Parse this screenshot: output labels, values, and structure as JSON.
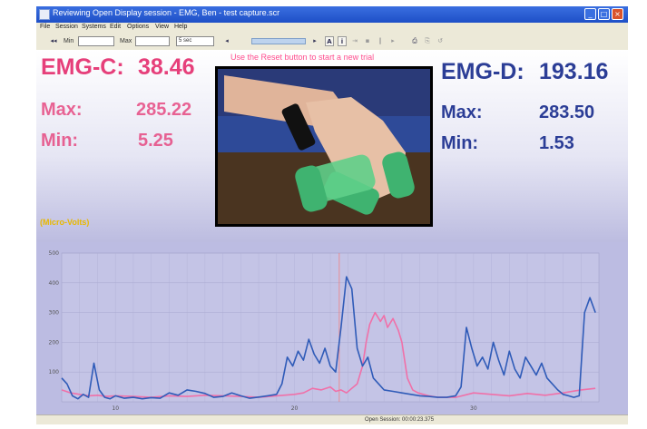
{
  "window": {
    "title": "Reviewing Open Display session - EMG, Ben - test capture.scr"
  },
  "menu": [
    "File",
    "Session",
    "Systems",
    "Edit",
    "Options",
    "View",
    "Help"
  ],
  "toolbar": {
    "min_label": "Min",
    "max_label": "Max",
    "time_select": "5 sec"
  },
  "banner": {
    "message": "Use the Reset button to start a new trial"
  },
  "emg_c": {
    "label": "EMG-C:",
    "value": "38.46",
    "max_label": "Max:",
    "max_value": "285.22",
    "min_label": "Min:",
    "min_value": "5.25",
    "color": "#e63f7a"
  },
  "emg_d": {
    "label": "EMG-D:",
    "value": "193.16",
    "max_label": "Max:",
    "max_value": "283.50",
    "min_label": "Min:",
    "min_value": "1.53",
    "color": "#2b3d96"
  },
  "units_label": "(Micro-Volts)",
  "status": {
    "text": "Open Session: 00:00:23.375"
  },
  "chart_data": {
    "type": "line",
    "ylim": [
      0,
      500
    ],
    "yticks": [
      "100",
      "200",
      "300",
      "400",
      "500"
    ],
    "xticks": [
      {
        "x": 10,
        "label": "10"
      },
      {
        "x": 20,
        "label": "20"
      },
      {
        "x": 30,
        "label": "30"
      }
    ],
    "xlim": [
      7,
      37
    ],
    "cursor_x": 22.5,
    "grid": true,
    "series": [
      {
        "color": "#2f5bb8",
        "x": [
          7,
          7.3,
          7.6,
          7.9,
          8.2,
          8.5,
          8.8,
          9.1,
          9.4,
          9.7,
          10,
          10.5,
          11,
          11.5,
          12,
          12.5,
          13,
          13.5,
          14,
          14.5,
          15,
          15.5,
          16,
          16.5,
          17,
          17.5,
          18,
          18.5,
          19,
          19.3,
          19.6,
          19.9,
          20.2,
          20.5,
          20.8,
          21.1,
          21.4,
          21.7,
          22,
          22.3,
          22.6,
          22.9,
          23.2,
          23.5,
          23.8,
          24.1,
          24.4,
          24.7,
          25,
          25.5,
          26,
          26.5,
          27,
          27.5,
          28,
          28.5,
          29,
          29.3,
          29.6,
          29.9,
          30.2,
          30.5,
          30.8,
          31.1,
          31.4,
          31.7,
          32,
          32.3,
          32.6,
          32.9,
          33.2,
          33.5,
          33.8,
          34.1,
          34.4,
          34.7,
          35,
          35.3,
          35.6,
          35.9,
          36.2,
          36.5,
          36.8
        ],
        "y": [
          80,
          60,
          20,
          10,
          25,
          15,
          130,
          40,
          15,
          10,
          20,
          12,
          15,
          10,
          14,
          12,
          30,
          22,
          40,
          35,
          28,
          15,
          18,
          30,
          20,
          12,
          16,
          20,
          25,
          60,
          150,
          120,
          170,
          140,
          210,
          160,
          130,
          180,
          120,
          100,
          250,
          420,
          380,
          180,
          120,
          150,
          80,
          60,
          40,
          35,
          30,
          25,
          20,
          18,
          15,
          15,
          20,
          50,
          250,
          180,
          120,
          150,
          110,
          200,
          140,
          90,
          170,
          110,
          80,
          150,
          120,
          90,
          130,
          80,
          60,
          40,
          25,
          20,
          15,
          20,
          300,
          350,
          300
        ]
      },
      {
        "color": "#f070a8",
        "x": [
          7,
          7.5,
          8,
          8.5,
          9,
          9.5,
          10,
          11,
          12,
          13,
          14,
          15,
          16,
          17,
          18,
          19,
          20,
          20.5,
          21,
          21.5,
          22,
          22.3,
          22.6,
          22.9,
          23.2,
          23.5,
          23.8,
          24,
          24.2,
          24.5,
          24.8,
          25,
          25.2,
          25.5,
          25.8,
          26,
          26.3,
          26.6,
          26.9,
          27.2,
          27.5,
          28,
          29,
          30,
          31,
          32,
          33,
          34,
          35,
          36,
          36.8
        ],
        "y": [
          40,
          30,
          25,
          20,
          22,
          18,
          20,
          18,
          15,
          20,
          18,
          22,
          20,
          18,
          15,
          20,
          25,
          30,
          45,
          40,
          50,
          35,
          40,
          30,
          45,
          60,
          120,
          200,
          260,
          300,
          270,
          290,
          250,
          280,
          240,
          200,
          80,
          40,
          30,
          25,
          20,
          15,
          15,
          30,
          25,
          20,
          28,
          22,
          30,
          40,
          45
        ]
      }
    ]
  }
}
